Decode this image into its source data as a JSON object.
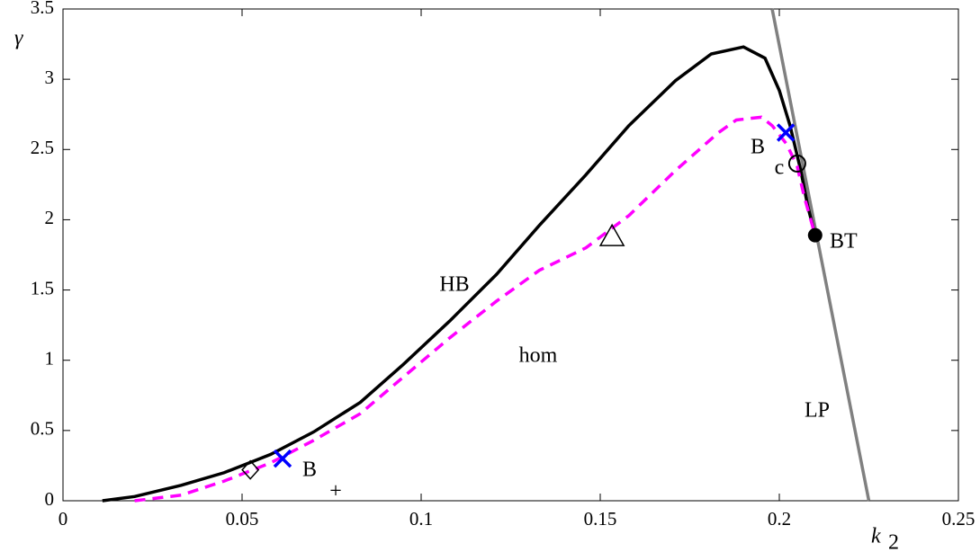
{
  "chart_data": {
    "type": "line",
    "xlabel": "k",
    "xlabel_sub": "2",
    "ylabel": "γ",
    "xlim": [
      0,
      0.25
    ],
    "xticks": [
      0,
      0.05,
      0.1,
      0.15,
      0.2,
      0.25
    ],
    "ylim": [
      0,
      3.5
    ],
    "yticks": [
      0,
      0.5,
      1,
      1.5,
      2,
      2.5,
      3,
      3.5
    ],
    "series": [
      {
        "name": "HB",
        "color": "#000000",
        "dash": false,
        "x": [
          0.011,
          0.02,
          0.033,
          0.045,
          0.058,
          0.07,
          0.083,
          0.095,
          0.108,
          0.121,
          0.133,
          0.146,
          0.158,
          0.171,
          0.181,
          0.19,
          0.196,
          0.2,
          0.203,
          0.206,
          0.208,
          0.21
        ],
        "values": [
          0,
          0.03,
          0.11,
          0.2,
          0.33,
          0.49,
          0.7,
          0.97,
          1.28,
          1.61,
          1.96,
          2.32,
          2.67,
          2.99,
          3.18,
          3.23,
          3.15,
          2.92,
          2.67,
          2.35,
          2.09,
          1.89
        ]
      },
      {
        "name": "hom",
        "color": "#ff00ff",
        "dash": true,
        "x": [
          0.02,
          0.033,
          0.045,
          0.058,
          0.07,
          0.083,
          0.095,
          0.108,
          0.121,
          0.133,
          0.146,
          0.158,
          0.171,
          0.183,
          0.188,
          0.195,
          0.198,
          0.202,
          0.205,
          0.207,
          0.21
        ],
        "values": [
          0,
          0.04,
          0.14,
          0.27,
          0.43,
          0.62,
          0.88,
          1.16,
          1.42,
          1.64,
          1.8,
          2.03,
          2.35,
          2.62,
          2.71,
          2.73,
          2.67,
          2.54,
          2.38,
          2.16,
          1.89
        ]
      },
      {
        "name": "LP",
        "color": "#808080",
        "dash": false,
        "x": [
          0.198,
          0.225
        ],
        "values": [
          3.5,
          0
        ]
      }
    ],
    "points": [
      {
        "marker": "x",
        "color": "#0000ff",
        "x": 0.0613,
        "y": 0.3
      },
      {
        "marker": "x",
        "color": "#0000ff",
        "x": 0.2018,
        "y": 2.62
      },
      {
        "marker": "circle-open",
        "color": "#000000",
        "x": 0.205,
        "y": 2.4
      },
      {
        "marker": "circle-filled",
        "color": "#000000",
        "x": 0.21,
        "y": 1.89
      },
      {
        "marker": "triangle",
        "color": "#000000",
        "x": 0.1533,
        "y": 1.88
      },
      {
        "marker": "diamond",
        "color": "#000000",
        "x": 0.0523,
        "y": 0.22
      }
    ],
    "annotations": [
      {
        "text": "B",
        "sub": "+"
      },
      {
        "text": "B",
        "sub": "c"
      },
      {
        "text": "BT"
      }
    ]
  }
}
